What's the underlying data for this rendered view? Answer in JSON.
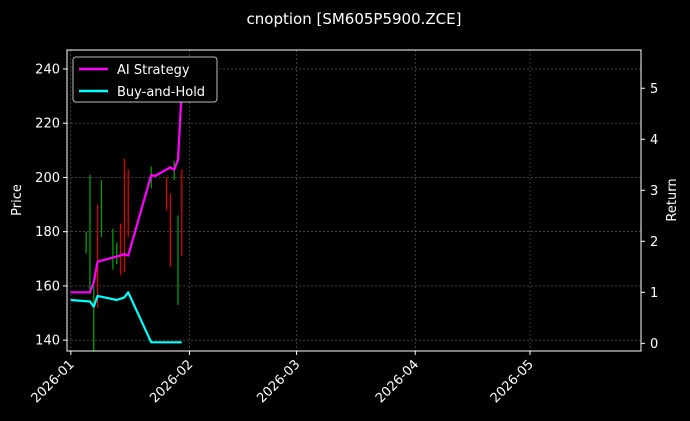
{
  "chart_data": {
    "type": "line",
    "title": "cnoption [SM605P5900.ZCE]",
    "ylabel_left": "Price",
    "ylabel_right": "Return",
    "grid": true,
    "legend_placement": "top-left",
    "colors": {
      "background": "#000000",
      "ai": "#ff00ff",
      "bh": "#00ffff",
      "candle_up": "#00a000",
      "candle_down": "#e00000",
      "grid": "#666666"
    },
    "x_axis": {
      "range": [
        "2025-12-31",
        "2026-05-30"
      ],
      "ticks": [
        {
          "date": "2026-01-01",
          "label": "2026-01"
        },
        {
          "date": "2026-02-01",
          "label": "2026-02"
        },
        {
          "date": "2026-03-01",
          "label": "2026-03"
        },
        {
          "date": "2026-04-01",
          "label": "2026-04"
        },
        {
          "date": "2026-05-01",
          "label": "2026-05"
        }
      ]
    },
    "y_left": {
      "range": [
        136,
        247
      ],
      "ticks": [
        {
          "v": 140,
          "label": "140"
        },
        {
          "v": 160,
          "label": "160"
        },
        {
          "v": 180,
          "label": "180"
        },
        {
          "v": 200,
          "label": "200"
        },
        {
          "v": 220,
          "label": "220"
        },
        {
          "v": 240,
          "label": "240"
        }
      ]
    },
    "y_right": {
      "range": [
        -0.15,
        5.75
      ],
      "ticks": [
        {
          "v": 0,
          "label": "0"
        },
        {
          "v": 1,
          "label": "1"
        },
        {
          "v": 2,
          "label": "2"
        },
        {
          "v": 3,
          "label": "3"
        },
        {
          "v": 4,
          "label": "4"
        },
        {
          "v": 5,
          "label": "5"
        }
      ]
    },
    "series": [
      {
        "name": "AI Strategy",
        "axis": "right",
        "points": [
          {
            "x": "2026-01-01",
            "y": 1.0
          },
          {
            "x": "2026-01-06",
            "y": 1.0
          },
          {
            "x": "2026-01-07",
            "y": 1.2
          },
          {
            "x": "2026-01-08",
            "y": 1.6
          },
          {
            "x": "2026-01-13",
            "y": 1.7
          },
          {
            "x": "2026-01-15",
            "y": 1.75
          },
          {
            "x": "2026-01-16",
            "y": 1.72
          },
          {
            "x": "2026-01-22",
            "y": 3.3
          },
          {
            "x": "2026-01-23",
            "y": 3.28
          },
          {
            "x": "2026-01-27",
            "y": 3.45
          },
          {
            "x": "2026-01-28",
            "y": 3.4
          },
          {
            "x": "2026-01-29",
            "y": 3.6
          },
          {
            "x": "2026-01-30",
            "y": 5.0
          }
        ]
      },
      {
        "name": "Buy-and-Hold",
        "axis": "right",
        "points": [
          {
            "x": "2026-01-01",
            "y": 0.85
          },
          {
            "x": "2026-01-06",
            "y": 0.82
          },
          {
            "x": "2026-01-07",
            "y": 0.72
          },
          {
            "x": "2026-01-08",
            "y": 0.93
          },
          {
            "x": "2026-01-13",
            "y": 0.85
          },
          {
            "x": "2026-01-15",
            "y": 0.9
          },
          {
            "x": "2026-01-16",
            "y": 1.0
          },
          {
            "x": "2026-01-22",
            "y": 0.02
          },
          {
            "x": "2026-01-30",
            "y": 0.02
          }
        ]
      }
    ],
    "candles": [
      {
        "x": "2026-01-05",
        "low": 172,
        "high": 180,
        "color": "up"
      },
      {
        "x": "2026-01-06",
        "low": 157,
        "high": 201,
        "color": "up"
      },
      {
        "x": "2026-01-07",
        "low": 136,
        "high": 160,
        "color": "up"
      },
      {
        "x": "2026-01-08",
        "low": 152,
        "high": 190,
        "color": "down"
      },
      {
        "x": "2026-01-09",
        "low": 178,
        "high": 199,
        "color": "up"
      },
      {
        "x": "2026-01-12",
        "low": 166,
        "high": 181,
        "color": "up"
      },
      {
        "x": "2026-01-13",
        "low": 168,
        "high": 176,
        "color": "up"
      },
      {
        "x": "2026-01-14",
        "low": 164,
        "high": 183,
        "color": "down"
      },
      {
        "x": "2026-01-15",
        "low": 165,
        "high": 207,
        "color": "down"
      },
      {
        "x": "2026-01-16",
        "low": 178,
        "high": 203,
        "color": "down"
      },
      {
        "x": "2026-01-22",
        "low": 196,
        "high": 204,
        "color": "up"
      },
      {
        "x": "2026-01-26",
        "low": 188,
        "high": 200,
        "color": "down"
      },
      {
        "x": "2026-01-27",
        "low": 167,
        "high": 194,
        "color": "down"
      },
      {
        "x": "2026-01-28",
        "low": 199,
        "high": 206,
        "color": "up"
      },
      {
        "x": "2026-01-29",
        "low": 153,
        "high": 186,
        "color": "up"
      },
      {
        "x": "2026-01-30",
        "low": 171,
        "high": 203,
        "color": "down"
      }
    ]
  }
}
